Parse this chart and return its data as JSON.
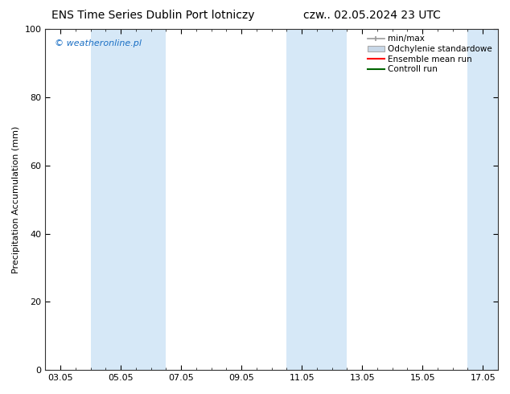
{
  "title_left": "ENS Time Series Dublin Port lotniczy",
  "title_right": "czw.. 02.05.2024 23 UTC",
  "ylabel": "Precipitation Accumulation (mm)",
  "watermark": "© weatheronline.pl",
  "watermark_color": "#1a6fc4",
  "ylim": [
    0,
    100
  ],
  "yticks": [
    0,
    20,
    40,
    60,
    80,
    100
  ],
  "xtick_labels": [
    "03.05",
    "05.05",
    "07.05",
    "09.05",
    "11.05",
    "13.05",
    "15.05",
    "17.05"
  ],
  "xmin": -0.5,
  "xmax": 14.5,
  "background_color": "#ffffff",
  "plot_bg_color": "#ffffff",
  "shaded_bands": [
    {
      "x_start": 1.0,
      "x_end": 2.0,
      "color": "#d6e8f7"
    },
    {
      "x_start": 2.0,
      "x_end": 3.5,
      "color": "#d6e8f7"
    },
    {
      "x_start": 7.5,
      "x_end": 9.5,
      "color": "#d6e8f7"
    },
    {
      "x_start": 13.5,
      "x_end": 14.5,
      "color": "#d6e8f7"
    }
  ],
  "legend_entries": [
    {
      "label": "min/max",
      "color": "#999999",
      "style": "errorbar"
    },
    {
      "label": "Odchylenie standardowe",
      "color": "#c8d8e8",
      "style": "bar"
    },
    {
      "label": "Ensemble mean run",
      "color": "#ff0000",
      "style": "line"
    },
    {
      "label": "Controll run",
      "color": "#008000",
      "style": "line"
    }
  ],
  "title_fontsize": 10,
  "tick_fontsize": 8,
  "ylabel_fontsize": 8,
  "watermark_fontsize": 8,
  "legend_fontsize": 7.5
}
